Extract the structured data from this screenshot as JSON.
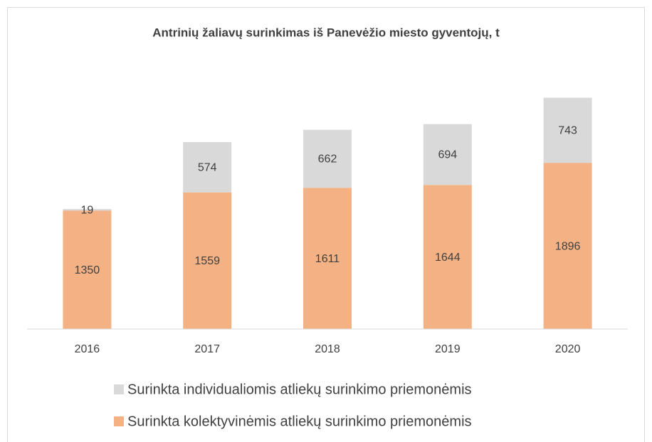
{
  "chart_data": {
    "type": "stacked_bar",
    "title": "Antrinių žaliavų surinkimas iš Panevėžio miesto gyventojų, t",
    "categories": [
      "2016",
      "2017",
      "2018",
      "2019",
      "2020"
    ],
    "series": [
      {
        "name": "Surinkta kolektyvinėmis atliekų surinkimo priemonėmis",
        "color": "#f4b183",
        "values": [
          1350,
          1559,
          1611,
          1644,
          1896
        ]
      },
      {
        "name": "Surinkta individualiomis atliekų surinkimo priemonėmis",
        "color": "#d9d9d9",
        "values": [
          19,
          574,
          662,
          694,
          743
        ]
      }
    ],
    "ylim": [
      0,
      3000
    ]
  }
}
